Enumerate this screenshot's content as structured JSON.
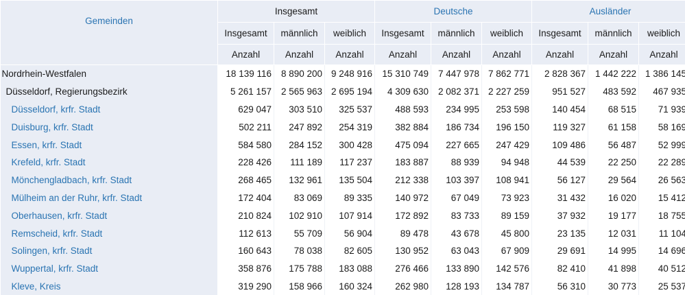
{
  "header": {
    "row_label": "Gemeinden",
    "groups": [
      {
        "label": "Insgesamt",
        "sub": [
          "Insgesamt",
          "männlich",
          "weiblich"
        ]
      },
      {
        "label": "Deutsche",
        "sub": [
          "Insgesamt",
          "männlich",
          "weiblich"
        ]
      },
      {
        "label": "Ausländer",
        "sub": [
          "Insgesamt",
          "männlich",
          "weiblich"
        ]
      }
    ],
    "unit": "Anzahl"
  },
  "rows": [
    {
      "name": "Nordrhein-Westfalen",
      "level": 0,
      "values": [
        "18 139 116",
        "8 890 200",
        "9 248 916",
        "15 310 749",
        "7 447 978",
        "7 862 771",
        "2 828 367",
        "1 442 222",
        "1 386 145"
      ]
    },
    {
      "name": "Düsseldorf, Regierungsbezirk",
      "level": 1,
      "values": [
        "5 261 157",
        "2 565 963",
        "2 695 194",
        "4 309 630",
        "2 082 371",
        "2 227 259",
        "951 527",
        "483 592",
        "467 935"
      ]
    },
    {
      "name": "Düsseldorf, krfr. Stadt",
      "level": 2,
      "values": [
        "629 047",
        "303 510",
        "325 537",
        "488 593",
        "234 995",
        "253 598",
        "140 454",
        "68 515",
        "71 939"
      ]
    },
    {
      "name": "Duisburg, krfr. Stadt",
      "level": 2,
      "values": [
        "502 211",
        "247 892",
        "254 319",
        "382 884",
        "186 734",
        "196 150",
        "119 327",
        "61 158",
        "58 169"
      ]
    },
    {
      "name": "Essen, krfr. Stadt",
      "level": 2,
      "values": [
        "584 580",
        "284 152",
        "300 428",
        "475 094",
        "227 665",
        "247 429",
        "109 486",
        "56 487",
        "52 999"
      ]
    },
    {
      "name": "Krefeld, krfr. Stadt",
      "level": 2,
      "values": [
        "228 426",
        "111 189",
        "117 237",
        "183 887",
        "88 939",
        "94 948",
        "44 539",
        "22 250",
        "22 289"
      ]
    },
    {
      "name": "Mönchengladbach, krfr. Stadt",
      "level": 2,
      "values": [
        "268 465",
        "132 961",
        "135 504",
        "212 338",
        "103 397",
        "108 941",
        "56 127",
        "29 564",
        "26 563"
      ]
    },
    {
      "name": "Mülheim an der Ruhr, krfr. Stadt",
      "level": 2,
      "values": [
        "172 404",
        "83 069",
        "89 335",
        "140 972",
        "67 049",
        "73 923",
        "31 432",
        "16 020",
        "15 412"
      ]
    },
    {
      "name": "Oberhausen, krfr. Stadt",
      "level": 2,
      "values": [
        "210 824",
        "102 910",
        "107 914",
        "172 892",
        "83 733",
        "89 159",
        "37 932",
        "19 177",
        "18 755"
      ]
    },
    {
      "name": "Remscheid, krfr. Stadt",
      "level": 2,
      "values": [
        "112 613",
        "55 709",
        "56 904",
        "89 478",
        "43 678",
        "45 800",
        "23 135",
        "12 031",
        "11 104"
      ]
    },
    {
      "name": "Solingen, krfr. Stadt",
      "level": 2,
      "values": [
        "160 643",
        "78 038",
        "82 605",
        "130 952",
        "63 043",
        "67 909",
        "29 691",
        "14 995",
        "14 696"
      ]
    },
    {
      "name": "Wuppertal, krfr. Stadt",
      "level": 2,
      "values": [
        "358 876",
        "175 788",
        "183 088",
        "276 466",
        "133 890",
        "142 576",
        "82 410",
        "41 898",
        "40 512"
      ]
    },
    {
      "name": "Kleve, Kreis",
      "level": 2,
      "values": [
        "319 290",
        "158 966",
        "160 324",
        "262 980",
        "128 193",
        "134 787",
        "56 310",
        "30 773",
        "25 537"
      ]
    }
  ]
}
